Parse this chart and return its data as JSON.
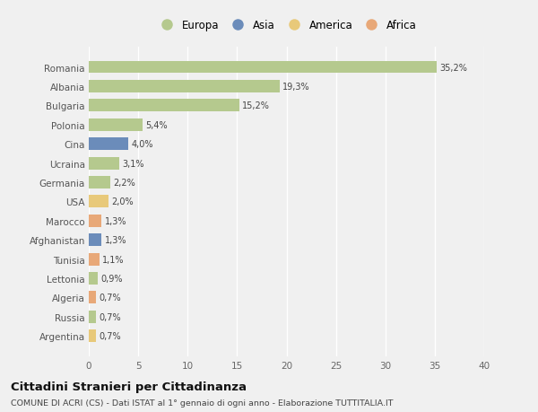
{
  "countries": [
    "Romania",
    "Albania",
    "Bulgaria",
    "Polonia",
    "Cina",
    "Ucraina",
    "Germania",
    "USA",
    "Marocco",
    "Afghanistan",
    "Tunisia",
    "Lettonia",
    "Algeria",
    "Russia",
    "Argentina"
  ],
  "values": [
    35.2,
    19.3,
    15.2,
    5.4,
    4.0,
    3.1,
    2.2,
    2.0,
    1.3,
    1.3,
    1.1,
    0.9,
    0.7,
    0.7,
    0.7
  ],
  "labels": [
    "35,2%",
    "19,3%",
    "15,2%",
    "5,4%",
    "4,0%",
    "3,1%",
    "2,2%",
    "2,0%",
    "1,3%",
    "1,3%",
    "1,1%",
    "0,9%",
    "0,7%",
    "0,7%",
    "0,7%"
  ],
  "continents": [
    "Europa",
    "Europa",
    "Europa",
    "Europa",
    "Asia",
    "Europa",
    "Europa",
    "America",
    "Africa",
    "Asia",
    "Africa",
    "Europa",
    "Africa",
    "Europa",
    "America"
  ],
  "continent_colors": {
    "Europa": "#b5c98e",
    "Asia": "#6b8cba",
    "America": "#e8c97a",
    "Africa": "#e8a878"
  },
  "title": "Cittadini Stranieri per Cittadinanza",
  "subtitle": "COMUNE DI ACRI (CS) - Dati ISTAT al 1° gennaio di ogni anno - Elaborazione TUTTITALIA.IT",
  "xlim": [
    0,
    40
  ],
  "xticks": [
    0,
    5,
    10,
    15,
    20,
    25,
    30,
    35,
    40
  ],
  "background_color": "#f0f0f0",
  "grid_color": "#ffffff",
  "bar_height": 0.65,
  "figsize": [
    6.0,
    4.6
  ],
  "dpi": 100
}
